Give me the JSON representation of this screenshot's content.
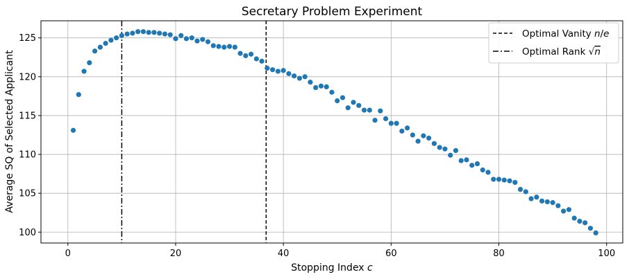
{
  "chart_data": {
    "type": "scatter",
    "title": "Secretary Problem Experiment",
    "xlabel": "Stopping Index c",
    "ylabel": "Average SQ of Selected Applicant",
    "xlim": [
      -5,
      103
    ],
    "ylim": [
      98.6,
      127.2
    ],
    "xticks": [
      0,
      20,
      40,
      60,
      80,
      100
    ],
    "yticks": [
      100,
      105,
      110,
      115,
      120,
      125
    ],
    "grid": true,
    "legend_position": "top-right",
    "point_color": "#1f77b4",
    "series": [
      {
        "x": [
          1,
          2,
          3,
          4,
          5,
          6,
          7,
          8,
          9,
          10,
          11,
          12,
          13,
          14,
          15,
          16,
          17,
          18,
          19,
          20,
          21,
          22,
          23,
          24,
          25,
          26,
          27,
          28,
          29,
          30,
          31,
          32,
          33,
          34,
          35,
          36,
          37,
          38,
          39,
          40,
          41,
          42,
          43,
          44,
          45,
          46,
          47,
          48,
          49,
          50,
          51,
          52,
          53,
          54,
          55,
          56,
          57,
          58,
          59,
          60,
          61,
          62,
          63,
          64,
          65,
          66,
          67,
          68,
          69,
          70,
          71,
          72,
          73,
          74,
          75,
          76,
          77,
          78,
          79,
          80,
          81,
          82,
          83,
          84,
          85,
          86,
          87,
          88,
          89,
          90,
          91,
          92,
          93,
          94,
          95,
          96,
          97,
          98
        ],
        "y": [
          113.1,
          117.7,
          120.7,
          121.8,
          123.3,
          123.8,
          124.3,
          124.7,
          125.0,
          125.3,
          125.5,
          125.6,
          125.8,
          125.8,
          125.7,
          125.7,
          125.6,
          125.5,
          125.4,
          124.9,
          125.3,
          124.9,
          125.0,
          124.6,
          124.8,
          124.5,
          124.0,
          123.9,
          123.8,
          123.9,
          123.8,
          123.0,
          122.7,
          122.9,
          122.3,
          122.0,
          121.1,
          120.9,
          120.7,
          120.8,
          120.4,
          120.1,
          119.8,
          120.0,
          119.3,
          118.6,
          118.8,
          118.7,
          118.0,
          116.9,
          117.3,
          116.0,
          116.7,
          116.3,
          115.7,
          115.7,
          114.4,
          115.6,
          114.6,
          114.0,
          114.0,
          113.0,
          113.4,
          112.5,
          111.7,
          112.4,
          112.1,
          111.4,
          110.9,
          110.7,
          109.9,
          110.5,
          109.2,
          109.3,
          108.6,
          108.8,
          108.0,
          107.7,
          106.8,
          106.8,
          106.7,
          106.6,
          106.4,
          105.5,
          105.2,
          104.3,
          104.5,
          104.0,
          103.9,
          103.8,
          103.4,
          102.7,
          102.9,
          101.8,
          101.4,
          101.2,
          100.5,
          99.9
        ]
      }
    ],
    "vlines": [
      {
        "x": 36.8,
        "style": "dashed",
        "label": "Optimal Vanity n/e"
      },
      {
        "x": 10,
        "style": "dashdot",
        "label": "Optimal Rank √n"
      }
    ]
  }
}
